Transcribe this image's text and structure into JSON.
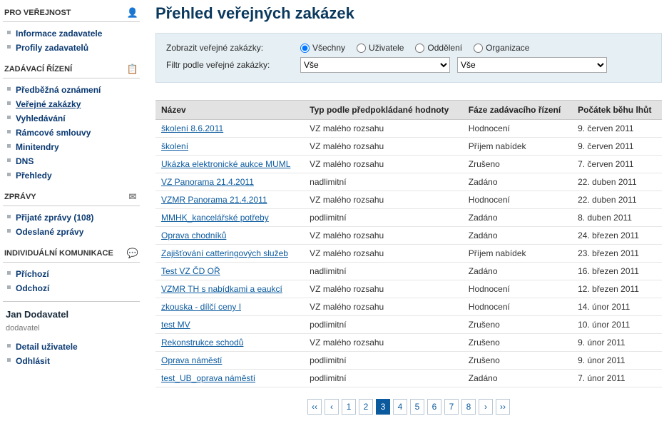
{
  "sidebar": {
    "sections": [
      {
        "title": "PRO VEŘEJNOST",
        "icon": "👤",
        "items": [
          {
            "label": "Informace zadavatele"
          },
          {
            "label": "Profily zadavatelů"
          }
        ]
      },
      {
        "title": "ZADÁVACÍ ŘÍZENÍ",
        "icon": "📋",
        "items": [
          {
            "label": "Předběžná oznámení"
          },
          {
            "label": "Veřejné zakázky",
            "active": true
          },
          {
            "label": "Vyhledávání"
          },
          {
            "label": "Rámcové smlouvy"
          },
          {
            "label": "Minitendry"
          },
          {
            "label": "DNS"
          },
          {
            "label": "Přehledy"
          }
        ]
      },
      {
        "title": "ZPRÁVY",
        "icon": "✉",
        "items": [
          {
            "label": "Přijaté zprávy (108)"
          },
          {
            "label": "Odeslané zprávy"
          }
        ]
      },
      {
        "title": "INDIVIDUÁLNÍ KOMUNIKACE",
        "icon": "💬",
        "items": [
          {
            "label": "Příchozí"
          },
          {
            "label": "Odchozí"
          }
        ]
      }
    ],
    "user": {
      "name": "Jan Dodavatel",
      "role": "dodavatel",
      "links": [
        {
          "label": "Detail uživatele"
        },
        {
          "label": "Odhlásit"
        }
      ]
    }
  },
  "main": {
    "title": "Přehled veřejných zakázek",
    "filters": {
      "show_label": "Zobrazit veřejné zakázky:",
      "filter_label": "Filtr podle veřejné zakázky:",
      "radios": [
        {
          "label": "Všechny",
          "checked": true
        },
        {
          "label": "Uživatele",
          "checked": false
        },
        {
          "label": "Oddělení",
          "checked": false
        },
        {
          "label": "Organizace",
          "checked": false
        }
      ],
      "select1": "Vše",
      "select2": "Vše"
    },
    "table": {
      "columns": [
        "Název",
        "Typ podle předpokládané hodnoty",
        "Fáze zadávacího řízení",
        "Počátek běhu lhůt"
      ],
      "rows": [
        [
          "školení 8.6.2011",
          "VZ malého rozsahu",
          "Hodnocení",
          "9. červen 2011"
        ],
        [
          "školení",
          "VZ malého rozsahu",
          "Příjem nabídek",
          "9. červen 2011"
        ],
        [
          "Ukázka elektronické aukce MUML",
          "VZ malého rozsahu",
          "Zrušeno",
          "7. červen 2011"
        ],
        [
          "VZ Panorama 21.4.2011",
          "nadlimitní",
          "Zadáno",
          "22. duben 2011"
        ],
        [
          "VZMR Panorama 21.4.2011",
          "VZ malého rozsahu",
          "Hodnocení",
          "22. duben 2011"
        ],
        [
          "MMHK_kancelářské potřeby",
          "podlimitní",
          "Zadáno",
          "8. duben 2011"
        ],
        [
          "Oprava chodníků",
          "VZ malého rozsahu",
          "Zadáno",
          "24. březen 2011"
        ],
        [
          "Zajišťování catteringových služeb",
          "VZ malého rozsahu",
          "Příjem nabídek",
          "23. březen 2011"
        ],
        [
          "Test VZ ČD OŘ",
          "nadlimitní",
          "Zadáno",
          "16. březen 2011"
        ],
        [
          "VZMR TH s nabídkami a eaukcí",
          "VZ malého rozsahu",
          "Hodnocení",
          "12. březen 2011"
        ],
        [
          "zkouska - dílčí ceny  I",
          "VZ malého rozsahu",
          "Hodnocení",
          "14. únor 2011"
        ],
        [
          "test MV",
          "podlimitní",
          "Zrušeno",
          "10. únor 2011"
        ],
        [
          "Rekonstrukce schodů",
          "VZ malého rozsahu",
          "Zrušeno",
          "9. únor 2011"
        ],
        [
          "Oprava náměstí",
          "podlimitní",
          "Zrušeno",
          "9. únor 2011"
        ],
        [
          "test_UB_oprava náměstí",
          "podlimitní",
          "Zadáno",
          "7. únor 2011"
        ]
      ]
    },
    "pager": {
      "first": "‹‹",
      "prev": "‹",
      "pages": [
        "1",
        "2",
        "3",
        "4",
        "5",
        "6",
        "7",
        "8"
      ],
      "current": "3",
      "next": "›",
      "last": "››"
    }
  },
  "colors": {
    "link": "#0b5a9e",
    "heading": "#0b395e",
    "filter_bg": "#e6eff4",
    "th_bg": "#e2e2e2"
  }
}
